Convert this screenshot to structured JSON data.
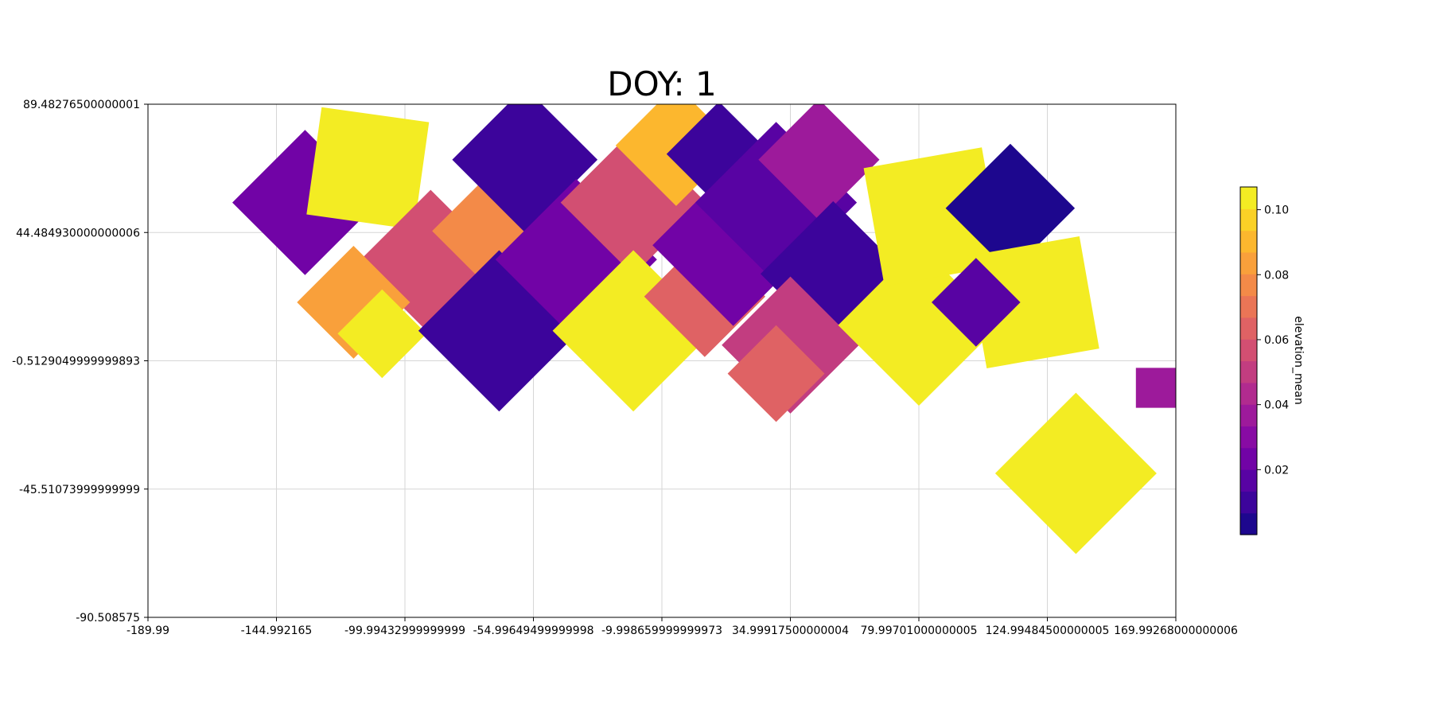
{
  "chart_data": {
    "type": "heatmap",
    "title": "DOY: 1",
    "xlabel": "",
    "ylabel": "",
    "xlim": [
      -189.99,
      169.99268000000006
    ],
    "ylim": [
      -90.508575,
      89.48276500000001
    ],
    "x_ticks": [
      -189.99,
      -144.992165,
      -99.99432999999999,
      -54.99649499999998,
      -9.998659999999973,
      34.99917500000004,
      79.99701000000005,
      124.99484500000005,
      169.99268000000006
    ],
    "x_tick_labels": [
      "-189.99",
      "-144.992165",
      "-99.99432999999999",
      "-54.99649499999998",
      "-9.998659999999973",
      "34.99917500000004",
      "79.99701000000005",
      "124.99484500000005",
      "169.99268000000006"
    ],
    "y_ticks": [
      89.48276500000001,
      44.484930000000006,
      -0.5129049999999893,
      -45.51073999999999,
      -90.508575
    ],
    "y_tick_labels": [
      "89.48276500000001",
      "44.484930000000006",
      "-0.5129049999999893",
      "-45.51073999999999",
      "-90.508575"
    ],
    "grid": true,
    "colormap": "plasma",
    "colorbar": {
      "label": "elevation_mean",
      "vmin": 0.0,
      "vmax": 0.107,
      "ticks": [
        0.02,
        0.04,
        0.06,
        0.08,
        0.1
      ],
      "tick_labels": [
        "0.02",
        "0.04",
        "0.06",
        "0.08",
        "0.10"
      ],
      "levels": 16
    },
    "tiles": [
      {
        "cx": -135,
        "cy": 55,
        "angle": 45,
        "size": 36,
        "value": 0.025
      },
      {
        "cx": -113,
        "cy": 67,
        "angle": -8,
        "size": 38,
        "value": 0.104
      },
      {
        "cx": -91,
        "cy": 34,
        "angle": -45,
        "size": 36,
        "value": 0.058
      },
      {
        "cx": -65,
        "cy": 45,
        "angle": 45,
        "size": 36,
        "value": 0.08
      },
      {
        "cx": -118,
        "cy": 20,
        "angle": 45,
        "size": 28,
        "value": 0.082
      },
      {
        "cx": -108,
        "cy": 9,
        "angle": 45,
        "size": 22,
        "value": 0.104
      },
      {
        "cx": -67,
        "cy": 10,
        "angle": 45,
        "size": 40,
        "value": 0.008
      },
      {
        "cx": -58,
        "cy": 70,
        "angle": 45,
        "size": 36,
        "value": 0.01
      },
      {
        "cx": -40,
        "cy": 35,
        "angle": 45,
        "size": 40,
        "value": 0.022
      },
      {
        "cx": -20,
        "cy": 55,
        "angle": 45,
        "size": 36,
        "value": 0.06
      },
      {
        "cx": -20,
        "cy": 10,
        "angle": 45,
        "size": 40,
        "value": 0.104
      },
      {
        "cx": -5,
        "cy": 75,
        "angle": 45,
        "size": 30,
        "value": 0.092
      },
      {
        "cx": 5,
        "cy": 22,
        "angle": 45,
        "size": 30,
        "value": 0.064
      },
      {
        "cx": 15,
        "cy": 40,
        "angle": 45,
        "size": 40,
        "value": 0.022
      },
      {
        "cx": 10,
        "cy": 72,
        "angle": 45,
        "size": 26,
        "value": 0.01
      },
      {
        "cx": 30,
        "cy": 55,
        "angle": 45,
        "size": 40,
        "value": 0.018
      },
      {
        "cx": 45,
        "cy": 70,
        "angle": 45,
        "size": 30,
        "value": 0.035
      },
      {
        "cx": 50,
        "cy": 30,
        "angle": 45,
        "size": 36,
        "value": 0.012
      },
      {
        "cx": 35,
        "cy": 5,
        "angle": 45,
        "size": 34,
        "value": 0.048
      },
      {
        "cx": 30,
        "cy": -5,
        "angle": 45,
        "size": 24,
        "value": 0.062
      },
      {
        "cx": 80,
        "cy": 12,
        "angle": 45,
        "size": 40,
        "value": 0.104
      },
      {
        "cx": 85,
        "cy": 50,
        "angle": 10,
        "size": 42,
        "value": 0.104
      },
      {
        "cx": 112,
        "cy": 53,
        "angle": 45,
        "size": 32,
        "value": 0.005
      },
      {
        "cx": 120,
        "cy": 20,
        "angle": 10,
        "size": 40,
        "value": 0.104
      },
      {
        "cx": 100,
        "cy": 20,
        "angle": 45,
        "size": 22,
        "value": 0.02
      },
      {
        "cx": 135,
        "cy": -40,
        "angle": -45,
        "size": 40,
        "value": 0.104
      },
      {
        "cx": 163,
        "cy": -10,
        "angle": 0,
        "size": 14,
        "value": 0.04
      }
    ]
  }
}
